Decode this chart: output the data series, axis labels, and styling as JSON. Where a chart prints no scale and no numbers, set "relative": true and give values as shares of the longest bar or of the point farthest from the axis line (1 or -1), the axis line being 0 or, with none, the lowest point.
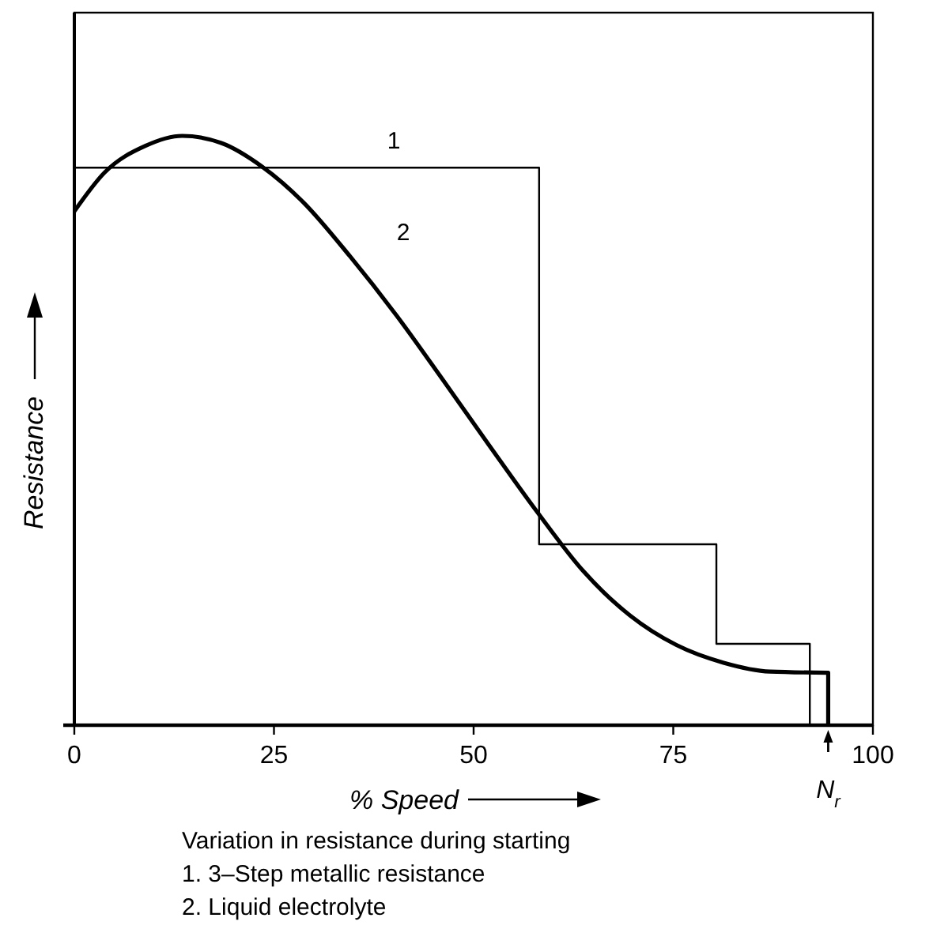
{
  "chart_data": {
    "type": "line",
    "xlabel": "% Speed",
    "ylabel": "Resistance",
    "relative": true,
    "xlim": [
      0,
      100
    ],
    "xticks": [
      0,
      25,
      50,
      75,
      100
    ],
    "grid": false,
    "legend": false,
    "marker": "none",
    "line_style": "solid",
    "series": [
      {
        "name": "1",
        "type": "step",
        "color": "#000000",
        "x": [
          0,
          58.2,
          80.4,
          92.1
        ],
        "values": [
          0.946,
          0.307,
          0.138,
          0
        ]
      },
      {
        "name": "2",
        "type": "line",
        "color": "#000000",
        "x": [
          0,
          3.8,
          8.9,
          13.5,
          18.4,
          23.5,
          28.7,
          34.5,
          40.3,
          46.2,
          52.0,
          57.9,
          63.7,
          69.6,
          75.4,
          81.3,
          87.1,
          94.4,
          94.4
        ],
        "values": [
          0.872,
          0.938,
          0.983,
          1.0,
          0.988,
          0.948,
          0.887,
          0.796,
          0.696,
          0.585,
          0.474,
          0.363,
          0.262,
          0.186,
          0.136,
          0.106,
          0.091,
          0.089,
          0
        ]
      }
    ],
    "annotations": [
      {
        "text": "N$_{r}$",
        "x": 94.4,
        "y": 0
      },
      "Variation in resistance during starting",
      "1. 3–Step metallic resistance",
      "2. Liquid electrolyte"
    ]
  }
}
